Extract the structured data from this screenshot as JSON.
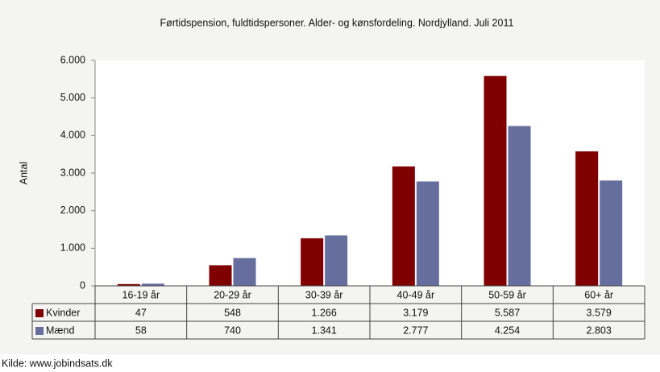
{
  "chart_data": {
    "type": "bar",
    "title": "Førtidspension, fuldtidspersoner. Alder- og kønsfordeling. Nordjylland. Juli 2011",
    "y_label": "Antal",
    "source": "Kilde: www.jobindsats.dk",
    "categories": [
      "16-19 år",
      "20-29 år",
      "30-39 år",
      "40-49 år",
      "50-59 år",
      "60+ år"
    ],
    "series": [
      {
        "name": "Kvinder",
        "color": "#800000",
        "values": [
          47,
          548,
          1266,
          3179,
          5587,
          3579
        ],
        "value_labels": [
          "47",
          "548",
          "1.266",
          "3.179",
          "5.587",
          "3.579"
        ]
      },
      {
        "name": "Mænd",
        "color": "#666e9e",
        "values": [
          58,
          740,
          1341,
          2777,
          4254,
          2803
        ],
        "value_labels": [
          "58",
          "740",
          "1.341",
          "2.777",
          "4.254",
          "2.803"
        ]
      }
    ],
    "ylim": [
      0,
      6000
    ],
    "yticks": [
      0,
      {
        "value": 1000,
        "label": "1.000"
      },
      {
        "value": 2000,
        "label": "2.000"
      },
      {
        "value": 3000,
        "label": "3.000"
      },
      {
        "value": 4000,
        "label": "4.000"
      },
      {
        "value": 5000,
        "label": "5.000"
      },
      {
        "value": 6000,
        "label": "6.000"
      }
    ],
    "grid": false
  }
}
